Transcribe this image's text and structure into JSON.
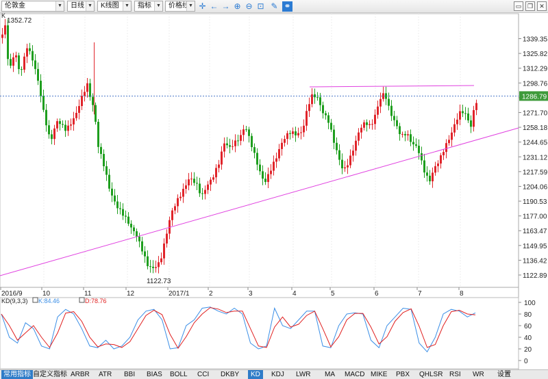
{
  "toolbar": {
    "instrument": "伦敦金",
    "period": "日线",
    "chart_type": "K线图",
    "indicator": "指标",
    "line_tool": "价格线"
  },
  "main_chart": {
    "label": "K",
    "high_label": "1352.72",
    "low_label": "1122.73",
    "current_price": "1286.79",
    "price_ticks": [
      "1339.35",
      "1325.82",
      "1312.29",
      "1298.76",
      "1285.23",
      "1271.70",
      "1258.18",
      "1244.65",
      "1231.12",
      "1217.59",
      "1204.06",
      "1190.53",
      "1177.00",
      "1163.47",
      "1149.95",
      "1136.42",
      "1122.89"
    ],
    "date_labels": [
      "2016/9",
      "10",
      "11",
      "12",
      "2017/1",
      "2",
      "3",
      "4",
      "5",
      "6",
      "7",
      "8"
    ]
  },
  "kd_panel": {
    "name": "KD(9,3,3)",
    "k_label": "K:84.46",
    "d_label": "D:78.76",
    "ticks": [
      "100",
      "80",
      "60",
      "40",
      "20",
      "0"
    ]
  },
  "colors": {
    "up": "#e0242a",
    "down": "#1e9e1e",
    "trendline": "#e040e0",
    "k_line": "#3a8ee6",
    "d_line": "#e02020",
    "price_tag": "#3e9a3a"
  },
  "tabs": [
    "常用指标",
    "自定义指标",
    "ARBR",
    "ATR",
    "BBI",
    "BIAS",
    "BOLL",
    "CCI",
    "DKBY",
    "KD",
    "KDJ",
    "LWR",
    "MA",
    "MACD",
    "MIKE",
    "PBX",
    "QHLSR",
    "RSI",
    "WR",
    "设置"
  ],
  "active_tab": "KD"
}
